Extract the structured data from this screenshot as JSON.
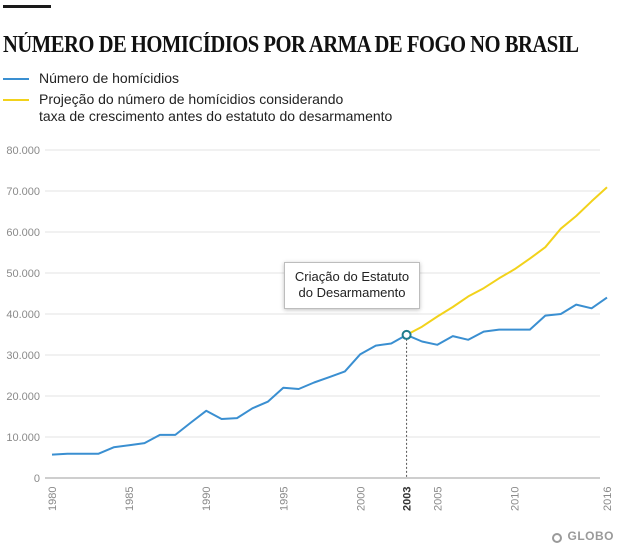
{
  "header": {
    "title": "NÚMERO DE HOMICÍDIOS POR ARMA DE FOGO NO BRASIL"
  },
  "legend": {
    "items": [
      {
        "label": "Número de homícidios",
        "color": "#3a8fd1"
      },
      {
        "label": "Projeção do número de homícidios considerando\ntaxa de crescimento antes do estatuto do desarmamento",
        "color": "#f2d21b"
      }
    ]
  },
  "annotation": {
    "line1": "Criação do Estatuto",
    "line2": "do Desarmamento",
    "year_label": "2003"
  },
  "brand": {
    "label": "GLOBO"
  },
  "chart_data": {
    "type": "line",
    "title": "NÚMERO DE HOMICÍDIOS POR ARMA DE FOGO NO BRASIL",
    "xlabel": "",
    "ylabel": "",
    "xlim": [
      1980,
      2016
    ],
    "ylim": [
      0,
      80000
    ],
    "y_ticks": [
      0,
      10000,
      20000,
      30000,
      40000,
      50000,
      60000,
      70000,
      80000
    ],
    "y_tick_labels": [
      "0",
      "10.000",
      "20.000",
      "30.000",
      "40.000",
      "50.000",
      "60.000",
      "70.000",
      "80.000"
    ],
    "x_ticks": [
      1980,
      1985,
      1990,
      1995,
      2000,
      2003,
      2005,
      2010,
      2016
    ],
    "x_tick_labels": [
      "1980",
      "1985",
      "1990",
      "1995",
      "2000",
      "2003",
      "2005",
      "2010",
      "2016"
    ],
    "grid": true,
    "legend_position": "top-left",
    "series": [
      {
        "name": "Número de homícidios",
        "color": "#3a8fd1",
        "x": [
          1980,
          1981,
          1982,
          1983,
          1984,
          1985,
          1986,
          1987,
          1988,
          1989,
          1990,
          1991,
          1992,
          1993,
          1994,
          1995,
          1996,
          1997,
          1998,
          1999,
          2000,
          2001,
          2002,
          2003,
          2004,
          2005,
          2006,
          2007,
          2008,
          2009,
          2010,
          2011,
          2012,
          2013,
          2014,
          2015,
          2016
        ],
        "values": [
          5700,
          5900,
          5900,
          5900,
          7500,
          8000,
          8500,
          10500,
          10500,
          13500,
          16400,
          14400,
          14600,
          17000,
          18600,
          22000,
          21700,
          23300,
          24600,
          26000,
          30200,
          32300,
          32800,
          34900,
          33300,
          32500,
          34600,
          33700,
          35700,
          36200,
          36200,
          36200,
          39600,
          40000,
          42300,
          41400,
          44000
        ]
      },
      {
        "name": "Projeção do número de homícidios considerando taxa de crescimento antes do estatuto do desarmamento",
        "color": "#f2d21b",
        "x": [
          2003,
          2004,
          2005,
          2006,
          2007,
          2008,
          2009,
          2010,
          2011,
          2012,
          2013,
          2014,
          2015,
          2016
        ],
        "values": [
          34900,
          36900,
          39400,
          41700,
          44300,
          46300,
          48700,
          50900,
          53500,
          56300,
          60800,
          63900,
          67500,
          70900
        ]
      }
    ],
    "annotations": [
      {
        "x": 2003,
        "y": 34900,
        "text": "Criação do Estatuto do Desarmamento"
      }
    ]
  }
}
